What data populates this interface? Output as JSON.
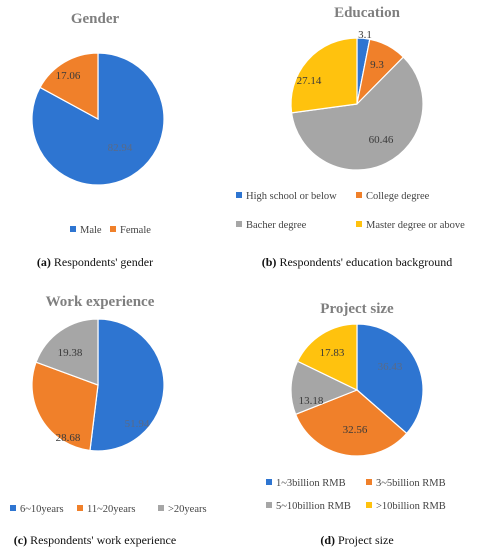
{
  "colors": {
    "blue": "#2e75d1",
    "orange": "#f0802a",
    "gray": "#a6a6a6",
    "yellow": "#ffc20e",
    "title": "#7f7f7f"
  },
  "chart_data": [
    {
      "type": "pie",
      "title": "Gender",
      "categories": [
        "Male",
        "Female"
      ],
      "values": [
        82.94,
        17.06
      ],
      "value_labels": [
        "82.94",
        "17.06"
      ],
      "colors": [
        "#2e75d1",
        "#f0802a"
      ],
      "legend": "bottom",
      "caption_letter": "(a)",
      "caption_text": " Respondents' gender"
    },
    {
      "type": "pie",
      "title": "Education",
      "categories": [
        "High school or below",
        "College degree",
        "Bacher degree",
        "Master degree or above"
      ],
      "values": [
        3.1,
        9.3,
        60.46,
        27.14
      ],
      "value_labels": [
        "3.1",
        "9.3",
        "60.46",
        "27.14"
      ],
      "colors": [
        "#2e75d1",
        "#f0802a",
        "#a6a6a6",
        "#ffc20e"
      ],
      "legend": "bottom",
      "caption_letter": "(b)",
      "caption_text": " Respondents' education background"
    },
    {
      "type": "pie",
      "title": "Work experience",
      "categories": [
        "6~10years",
        "11~20years",
        ">20years"
      ],
      "values": [
        51.94,
        28.68,
        19.38
      ],
      "value_labels": [
        "51.94",
        "28.68",
        "19.38"
      ],
      "colors": [
        "#2e75d1",
        "#f0802a",
        "#a6a6a6"
      ],
      "legend": "bottom",
      "caption_letter": "(c)",
      "caption_text": " Respondents' work experience"
    },
    {
      "type": "pie",
      "title": "Project size",
      "categories": [
        "1~3billion RMB",
        "3~5billion RMB",
        "5~10billion RMB",
        ">10billion RMB"
      ],
      "values": [
        36.43,
        32.56,
        13.18,
        17.83
      ],
      "value_labels": [
        "36.43",
        "32.56",
        "13.18",
        "17.83"
      ],
      "colors": [
        "#2e75d1",
        "#f0802a",
        "#a6a6a6",
        "#ffc20e"
      ],
      "legend": "bottom",
      "caption_letter": "(d)",
      "caption_text": " Project size"
    }
  ]
}
